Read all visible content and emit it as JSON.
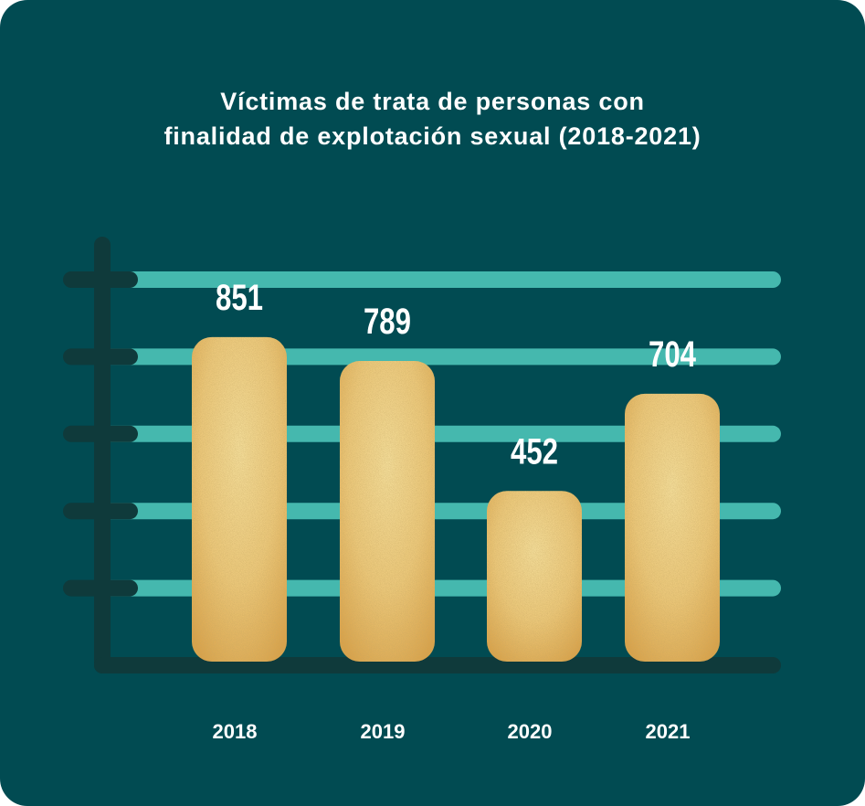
{
  "chart_data": {
    "type": "bar",
    "title_lines": [
      "Víctimas de trata de personas con",
      "finalidad de explotación sexual (2018-2021)"
    ],
    "categories": [
      "2018",
      "2019",
      "2020",
      "2021"
    ],
    "values": [
      851,
      789,
      452,
      704
    ],
    "value_labels": [
      "851",
      "789",
      "452",
      "704"
    ],
    "xlabel": "",
    "ylabel": "",
    "ylim": [
      0,
      1000
    ],
    "gridlines": 5,
    "grid": true,
    "legend": "none"
  },
  "colors": {
    "background": "#014b52",
    "gridline": "#45b8ae",
    "axis": "#0f3a3b",
    "bar_light": "#f3dc98",
    "bar_dark": "#d9a24a",
    "text": "#ffffff"
  }
}
